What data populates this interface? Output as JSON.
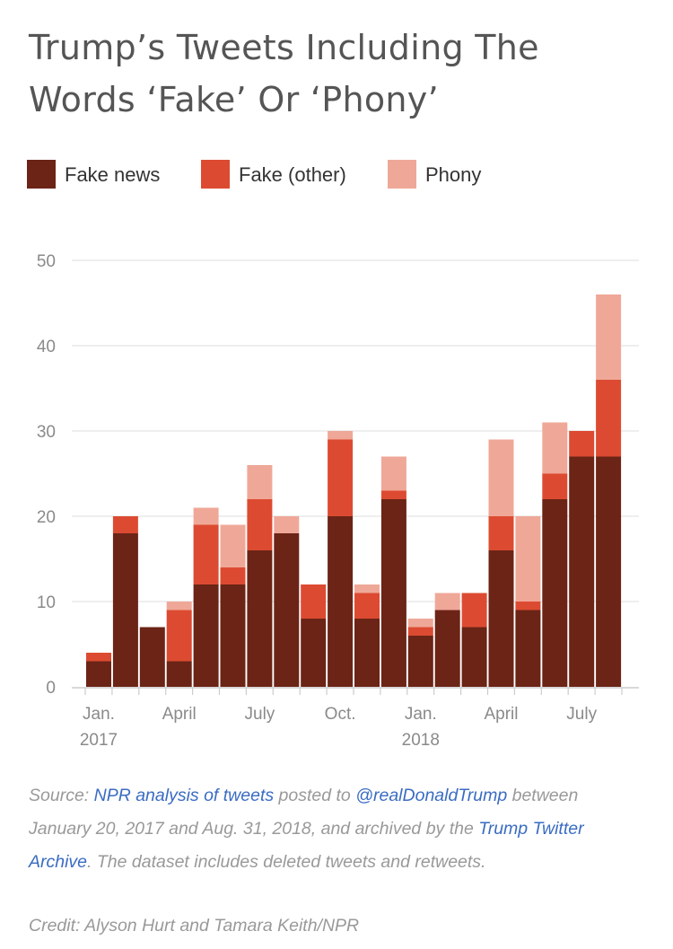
{
  "title": "Trump’s Tweets Including The Words ‘Fake’ Or ‘Phony’",
  "legend": [
    {
      "label": "Fake news",
      "color": "#6b2416"
    },
    {
      "label": "Fake (other)",
      "color": "#dc4b31"
    },
    {
      "label": "Phony",
      "color": "#efa898"
    }
  ],
  "chart_data": {
    "type": "bar",
    "stacked": true,
    "ylim": [
      0,
      50
    ],
    "yticks": [
      "0",
      "10",
      "20",
      "30",
      "40",
      "50"
    ],
    "xtick_labels": [
      {
        "label": "Jan.",
        "sublabel": "2017",
        "bar_index": 0
      },
      {
        "label": "April",
        "sublabel": "",
        "bar_index": 3
      },
      {
        "label": "July",
        "sublabel": "",
        "bar_index": 6
      },
      {
        "label": "Oct.",
        "sublabel": "",
        "bar_index": 9
      },
      {
        "label": "Jan.",
        "sublabel": "2018",
        "bar_index": 12
      },
      {
        "label": "April",
        "sublabel": "",
        "bar_index": 15
      },
      {
        "label": "July",
        "sublabel": "",
        "bar_index": 18
      }
    ],
    "grid": true,
    "legend_position": "top",
    "series": [
      {
        "name": "Fake news",
        "color": "#6b2416",
        "values": [
          3,
          18,
          7,
          3,
          12,
          12,
          16,
          18,
          8,
          20,
          8,
          22,
          6,
          9,
          7,
          16,
          9,
          22,
          27,
          27
        ]
      },
      {
        "name": "Fake (other)",
        "color": "#dc4b31",
        "values": [
          1,
          2,
          0,
          6,
          7,
          2,
          6,
          0,
          4,
          9,
          3,
          1,
          1,
          0,
          4,
          4,
          1,
          3,
          3,
          9
        ]
      },
      {
        "name": "Phony",
        "color": "#efa898",
        "values": [
          0,
          0,
          0,
          1,
          2,
          5,
          4,
          2,
          0,
          1,
          1,
          4,
          1,
          2,
          0,
          9,
          10,
          6,
          0,
          10
        ]
      }
    ]
  },
  "source": {
    "prefix": "Source: ",
    "link1": "NPR analysis of tweets",
    "mid1": " posted to ",
    "link2": "@realDonaldTrump",
    "mid2": " between January 20, 2017 and Aug. 31, 2018, and archived by the ",
    "link3": "Trump Twitter Archive",
    "suffix": ". The dataset includes deleted tweets and retweets."
  },
  "credit": "Credit: Alyson Hurt and Tamara Keith/NPR"
}
